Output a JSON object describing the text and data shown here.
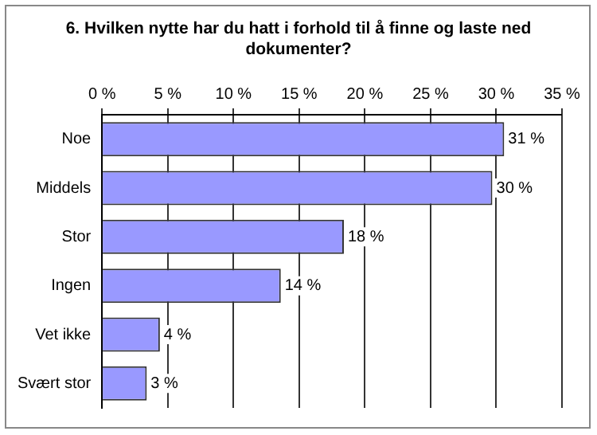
{
  "chart_data": {
    "type": "bar",
    "orientation": "horizontal",
    "title": "6. Hvilken nytte har du hatt i forhold til å finne og laste ned dokumenter?",
    "categories": [
      "Noe",
      "Middels",
      "Stor",
      "Ingen",
      "Vet ikke",
      "Svært stor"
    ],
    "values": [
      30.6,
      29.7,
      18.4,
      13.6,
      4.4,
      3.4
    ],
    "value_labels": [
      "31 %",
      "30 %",
      "18 %",
      "14 %",
      "4 %",
      "3 %"
    ],
    "color": "#9999ff",
    "xlim": [
      0,
      35
    ],
    "xticks": [
      {
        "value": 0,
        "label": "0 %"
      },
      {
        "value": 5,
        "label": "5 %"
      },
      {
        "value": 10,
        "label": "10 %"
      },
      {
        "value": 15,
        "label": "15 %"
      },
      {
        "value": 20,
        "label": "20 %"
      },
      {
        "value": 25,
        "label": "25 %"
      },
      {
        "value": 30,
        "label": "30 %"
      },
      {
        "value": 35,
        "label": "35 %"
      }
    ],
    "grid": "x",
    "legend": false
  }
}
